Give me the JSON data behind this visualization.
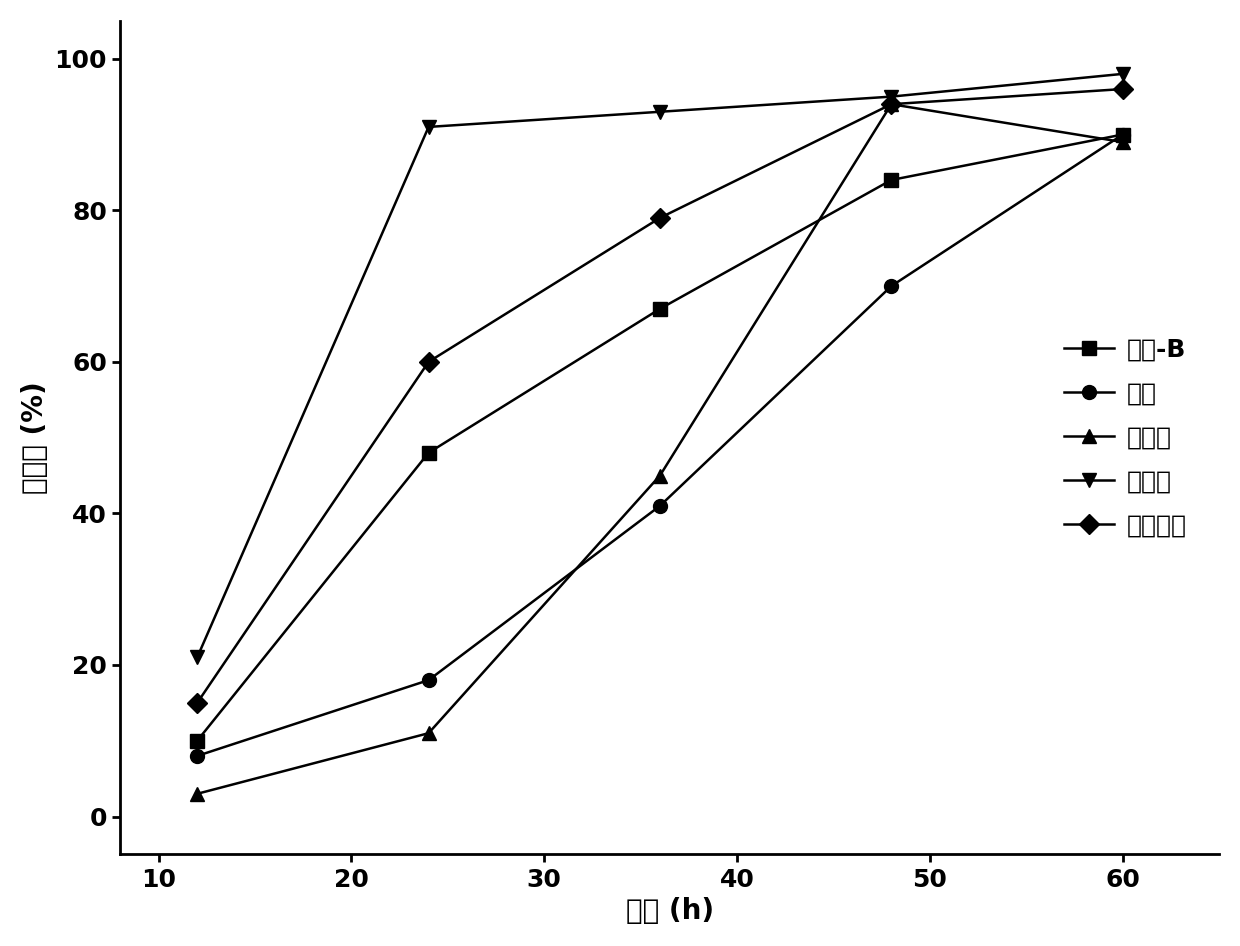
{
  "x": [
    12,
    24,
    36,
    48,
    60
  ],
  "series": [
    {
      "label": "天青-B",
      "values": [
        10,
        48,
        67,
        84,
        90
      ],
      "marker": "s",
      "color": "#000000"
    },
    {
      "label": "酚红",
      "values": [
        8,
        18,
        41,
        70,
        90
      ],
      "marker": "o",
      "color": "#000000"
    },
    {
      "label": "刚果红",
      "values": [
        3,
        11,
        45,
        94,
        89
      ],
      "marker": "^",
      "color": "#000000"
    },
    {
      "label": "苯胺蓝",
      "values": [
        21,
        91,
        93,
        95,
        98
      ],
      "marker": "v",
      "color": "#000000"
    },
    {
      "label": "亚甲基蓝",
      "values": [
        15,
        60,
        79,
        94,
        96
      ],
      "marker": "D",
      "color": "#000000"
    }
  ],
  "xlabel": "时间 (h)",
  "ylabel": "脉色率 (%)",
  "xlim": [
    8,
    65
  ],
  "ylim": [
    -5,
    105
  ],
  "xticks": [
    10,
    20,
    30,
    40,
    50,
    60
  ],
  "yticks": [
    0,
    20,
    40,
    60,
    80,
    100
  ],
  "background_color": "#ffffff",
  "line_width": 1.8,
  "marker_size": 10,
  "font_size_label": 20,
  "font_size_tick": 18,
  "font_size_legend": 18
}
